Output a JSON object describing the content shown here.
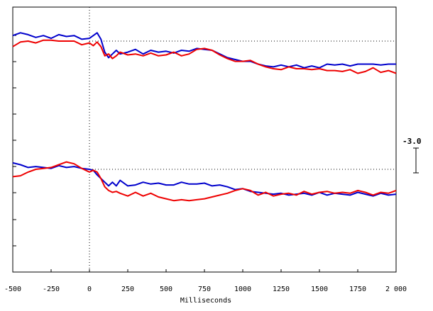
{
  "chart_data": {
    "type": "line",
    "xlabel": "Milliseconds",
    "xlim": [
      -500,
      2000
    ],
    "x_ticks": [
      -500,
      -250,
      0,
      250,
      500,
      750,
      1000,
      1250,
      1500,
      1750,
      2000
    ],
    "x_tick_labels": [
      "-500",
      "-250",
      "0",
      "250",
      "500",
      "750",
      "1000",
      "1250",
      "1500",
      "1750",
      "2 000"
    ],
    "scale_bar_label": "-3.0",
    "grid": false,
    "colors": {
      "series_a": "#0000cc",
      "series_b": "#ee0000",
      "axis": "#000000"
    },
    "panels": [
      {
        "name": "upper",
        "baseline": 0,
        "ylim": [
          -8,
          2
        ],
        "series": [
          {
            "color": "#0000cc",
            "x": [
              -500,
              -450,
              -400,
              -350,
              -300,
              -250,
              -200,
              -150,
              -100,
              -50,
              0,
              25,
              50,
              75,
              100,
              125,
              150,
              175,
              200,
              250,
              300,
              350,
              400,
              450,
              500,
              550,
              600,
              650,
              700,
              750,
              800,
              850,
              900,
              950,
              1000,
              1050,
              1100,
              1150,
              1200,
              1250,
              1300,
              1350,
              1400,
              1450,
              1500,
              1550,
              1600,
              1650,
              1700,
              1750,
              1800,
              1850,
              1900,
              1950,
              2000
            ],
            "y": [
              0.6,
              0.9,
              0.7,
              0.4,
              0.6,
              0.3,
              0.7,
              0.5,
              0.6,
              0.2,
              0.3,
              0.6,
              0.9,
              0.2,
              -1.2,
              -1.8,
              -1.4,
              -1.0,
              -1.4,
              -1.2,
              -0.9,
              -1.4,
              -1.0,
              -1.2,
              -1.1,
              -1.3,
              -1.0,
              -1.1,
              -0.8,
              -0.9,
              -1.0,
              -1.4,
              -1.8,
              -2.0,
              -2.2,
              -2.2,
              -2.5,
              -2.7,
              -2.8,
              -2.6,
              -2.8,
              -2.6,
              -2.9,
              -2.7,
              -2.9,
              -2.5,
              -2.6,
              -2.5,
              -2.7,
              -2.5,
              -2.5,
              -2.5,
              -2.6,
              -2.5,
              -2.5
            ]
          },
          {
            "color": "#ee0000",
            "x": [
              -500,
              -450,
              -400,
              -350,
              -300,
              -250,
              -200,
              -150,
              -100,
              -50,
              0,
              25,
              50,
              75,
              100,
              125,
              150,
              175,
              200,
              250,
              300,
              350,
              400,
              450,
              500,
              550,
              600,
              650,
              700,
              750,
              800,
              850,
              900,
              950,
              1000,
              1050,
              1100,
              1150,
              1200,
              1250,
              1300,
              1350,
              1400,
              1450,
              1500,
              1550,
              1600,
              1650,
              1700,
              1750,
              1800,
              1850,
              1900,
              1950,
              2000
            ],
            "y": [
              -0.6,
              -0.1,
              0.0,
              -0.2,
              0.1,
              0.1,
              0.0,
              0.0,
              0.0,
              -0.4,
              -0.2,
              -0.5,
              -0.1,
              -0.6,
              -1.6,
              -1.4,
              -1.9,
              -1.6,
              -1.2,
              -1.5,
              -1.4,
              -1.6,
              -1.3,
              -1.6,
              -1.5,
              -1.2,
              -1.6,
              -1.4,
              -0.9,
              -0.8,
              -1.0,
              -1.5,
              -1.9,
              -2.2,
              -2.2,
              -2.1,
              -2.5,
              -2.8,
              -3.0,
              -3.1,
              -2.8,
              -3.0,
              -3.0,
              -3.1,
              -3.0,
              -3.2,
              -3.2,
              -3.3,
              -3.1,
              -3.5,
              -3.3,
              -2.9,
              -3.4,
              -3.2,
              -3.5
            ]
          }
        ]
      },
      {
        "name": "lower",
        "baseline": 0,
        "ylim": [
          -8,
          2
        ],
        "series": [
          {
            "color": "#0000cc",
            "x": [
              -500,
              -450,
              -400,
              -350,
              -300,
              -250,
              -200,
              -150,
              -100,
              -50,
              0,
              25,
              50,
              75,
              100,
              125,
              150,
              175,
              200,
              250,
              300,
              350,
              400,
              450,
              500,
              550,
              600,
              650,
              700,
              750,
              800,
              850,
              900,
              950,
              1000,
              1050,
              1100,
              1150,
              1200,
              1250,
              1300,
              1350,
              1400,
              1450,
              1500,
              1550,
              1600,
              1650,
              1700,
              1750,
              1800,
              1850,
              1900,
              1950,
              2000
            ],
            "y": [
              0.7,
              0.5,
              0.2,
              0.3,
              0.2,
              0.1,
              0.4,
              0.2,
              0.3,
              0.1,
              0.0,
              -0.1,
              -0.6,
              -1.0,
              -1.4,
              -1.8,
              -1.4,
              -1.8,
              -1.2,
              -1.8,
              -1.7,
              -1.4,
              -1.6,
              -1.5,
              -1.7,
              -1.7,
              -1.4,
              -1.6,
              -1.6,
              -1.5,
              -1.8,
              -1.7,
              -1.9,
              -2.2,
              -2.1,
              -2.4,
              -2.5,
              -2.6,
              -2.7,
              -2.6,
              -2.8,
              -2.7,
              -2.6,
              -2.8,
              -2.5,
              -2.8,
              -2.6,
              -2.7,
              -2.8,
              -2.5,
              -2.7,
              -2.9,
              -2.6,
              -2.8,
              -2.7
            ]
          },
          {
            "color": "#ee0000",
            "x": [
              -500,
              -450,
              -400,
              -350,
              -300,
              -250,
              -200,
              -150,
              -100,
              -50,
              0,
              25,
              50,
              75,
              100,
              125,
              150,
              175,
              200,
              250,
              300,
              350,
              400,
              450,
              500,
              550,
              600,
              650,
              700,
              750,
              800,
              850,
              900,
              950,
              1000,
              1050,
              1100,
              1150,
              1200,
              1250,
              1300,
              1350,
              1400,
              1450,
              1500,
              1550,
              1600,
              1650,
              1700,
              1750,
              1800,
              1850,
              1900,
              1950,
              2000
            ],
            "y": [
              -0.8,
              -0.7,
              -0.3,
              0.0,
              0.1,
              0.2,
              0.5,
              0.8,
              0.6,
              0.1,
              -0.3,
              -0.1,
              -0.3,
              -1.0,
              -1.9,
              -2.3,
              -2.5,
              -2.4,
              -2.6,
              -2.9,
              -2.5,
              -2.9,
              -2.6,
              -3.0,
              -3.2,
              -3.4,
              -3.3,
              -3.4,
              -3.3,
              -3.2,
              -3.0,
              -2.8,
              -2.6,
              -2.3,
              -2.1,
              -2.3,
              -2.8,
              -2.5,
              -2.9,
              -2.7,
              -2.6,
              -2.8,
              -2.4,
              -2.7,
              -2.5,
              -2.4,
              -2.6,
              -2.5,
              -2.6,
              -2.3,
              -2.5,
              -2.8,
              -2.5,
              -2.6,
              -2.3
            ]
          }
        ]
      }
    ]
  }
}
